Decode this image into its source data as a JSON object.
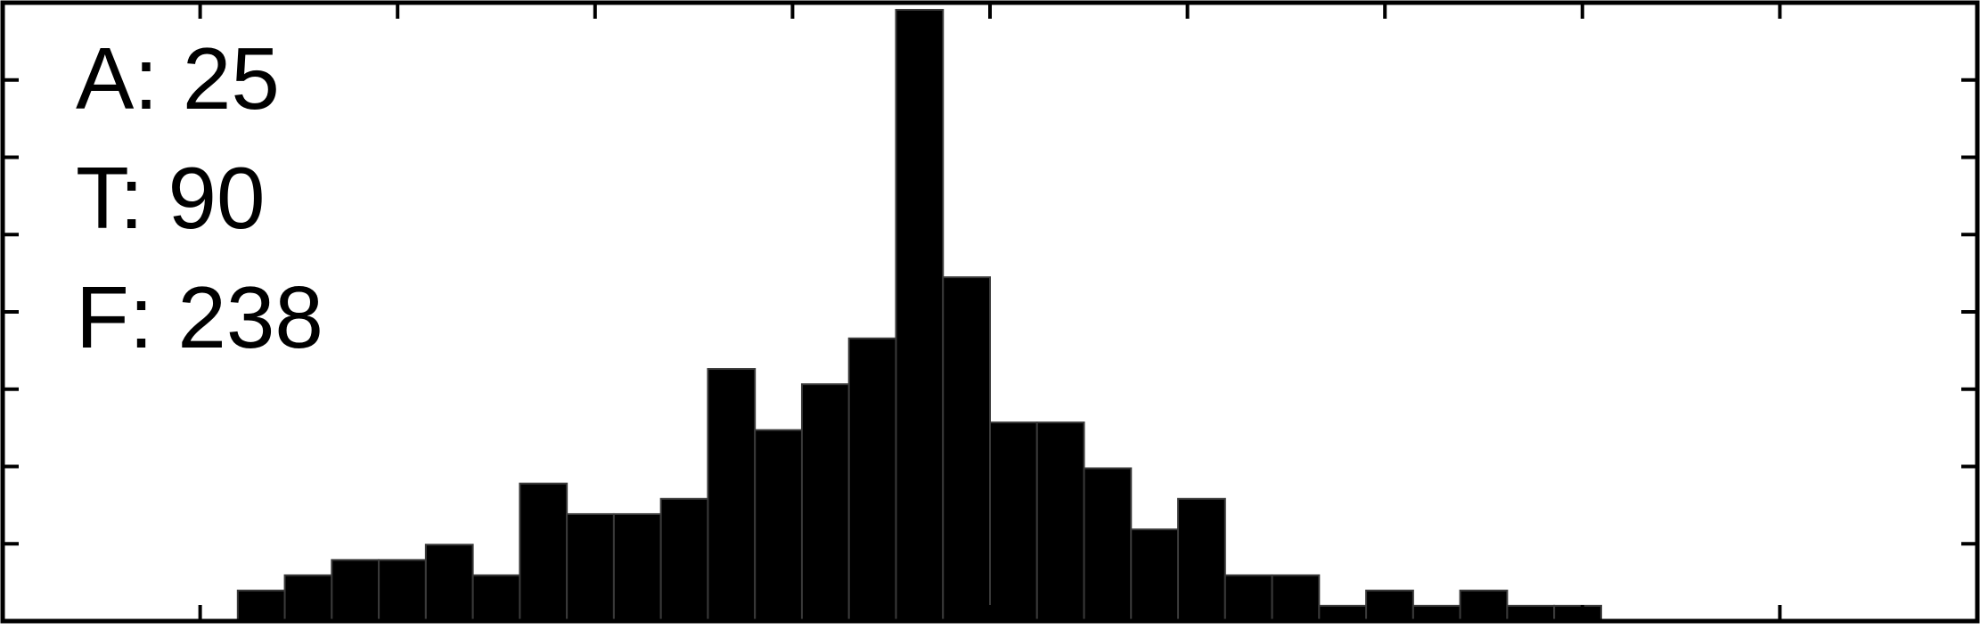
{
  "chart_data": {
    "type": "bar",
    "title": "",
    "xlabel": "",
    "ylabel": "",
    "grid": false,
    "colors": {
      "bar": "#000000",
      "bar_edge": "#3a3a3a",
      "axes": "#000000",
      "background": "#ffffff"
    },
    "annotations": [
      {
        "label": "A",
        "value": "25",
        "text": "A: 25"
      },
      {
        "label": "T",
        "value": "90",
        "text": "T: 90"
      },
      {
        "label": "F",
        "value": "238",
        "text": "F: 238"
      }
    ],
    "bin_start": 5,
    "bin_count": 42,
    "values": [
      0,
      0,
      0,
      0,
      0,
      4,
      6,
      8,
      8,
      10,
      6,
      18,
      14,
      14,
      16,
      33,
      25,
      31,
      37,
      80,
      45,
      26,
      26,
      20,
      12,
      16,
      6,
      6,
      2,
      4,
      2,
      4,
      2,
      2,
      0,
      0,
      0,
      0,
      0,
      0,
      0,
      0
    ],
    "ylim": [
      0,
      80
    ],
    "x_ticks": 10,
    "y_ticks": 8
  }
}
